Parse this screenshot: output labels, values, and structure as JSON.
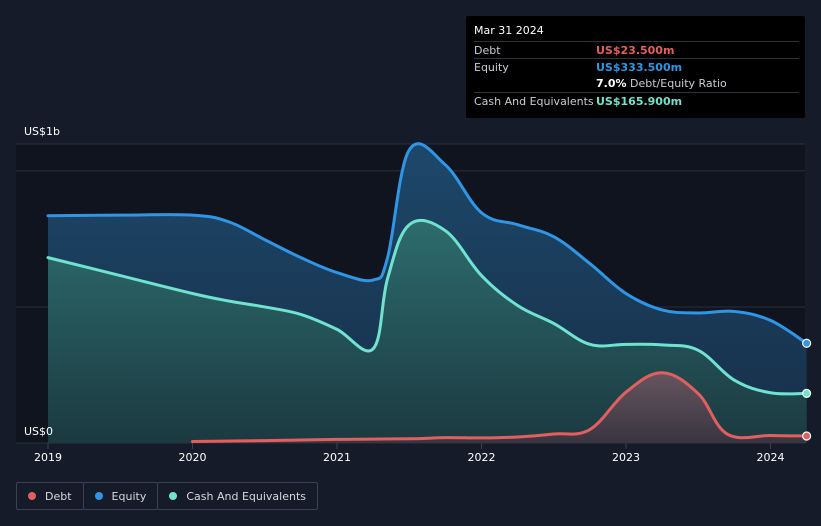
{
  "colors": {
    "debt": "#e35f5f",
    "equity": "#2f96e6",
    "cash": "#6fe3cf",
    "background": "#151b29",
    "plot_background": "#0f141f",
    "grid": "#2a303b"
  },
  "tooltip": {
    "date": "Mar 31 2024",
    "rows": {
      "debt": {
        "label": "Debt",
        "value": "US$23.500m"
      },
      "equity": {
        "label": "Equity",
        "value": "US$333.500m"
      },
      "ratio": {
        "value": "7.0%",
        "label": "Debt/Equity Ratio"
      },
      "cash": {
        "label": "Cash And Equivalents",
        "value": "US$165.900m"
      }
    }
  },
  "legend": {
    "debt": "Debt",
    "equity": "Equity",
    "cash": "Cash And Equivalents"
  },
  "chart_data": {
    "type": "area",
    "xlim": [
      2019.0,
      2024.25
    ],
    "ylim": [
      0,
      1000
    ],
    "y_axis_labels": {
      "top": "US$1b",
      "bottom": "US$0"
    },
    "x_ticks": [
      {
        "value": 2019,
        "label": "2019"
      },
      {
        "value": 2020,
        "label": "2020"
      },
      {
        "value": 2021,
        "label": "2021"
      },
      {
        "value": 2022,
        "label": "2022"
      },
      {
        "value": 2023,
        "label": "2023"
      },
      {
        "value": 2024,
        "label": "2024"
      }
    ],
    "grid": true,
    "legend_placement": "bottom-left",
    "series": [
      {
        "key": "equity",
        "name": "Equity",
        "x": [
          2019.0,
          2019.5,
          2020.0,
          2020.25,
          2020.5,
          2020.75,
          2021.0,
          2021.25,
          2021.35,
          2021.5,
          2021.75,
          2022.0,
          2022.25,
          2022.5,
          2022.75,
          2023.0,
          2023.25,
          2023.5,
          2023.75,
          2024.0,
          2024.25
        ],
        "y": [
          760,
          762,
          762,
          740,
          680,
          620,
          570,
          545,
          620,
          980,
          930,
          770,
          730,
          690,
          600,
          500,
          445,
          435,
          440,
          410,
          333.5
        ]
      },
      {
        "key": "cash",
        "name": "Cash And Equivalents",
        "x": [
          2019.0,
          2019.5,
          2020.0,
          2020.25,
          2020.5,
          2020.75,
          2021.0,
          2021.25,
          2021.35,
          2021.5,
          2021.75,
          2022.0,
          2022.25,
          2022.5,
          2022.75,
          2023.0,
          2023.25,
          2023.5,
          2023.75,
          2024.0,
          2024.25
        ],
        "y": [
          620,
          560,
          500,
          475,
          455,
          430,
          380,
          315,
          550,
          730,
          710,
          560,
          460,
          400,
          330,
          330,
          328,
          310,
          210,
          168,
          165.9
        ]
      },
      {
        "key": "debt",
        "name": "Debt",
        "x": [
          2020.0,
          2020.5,
          2021.0,
          2021.5,
          2021.75,
          2022.0,
          2022.25,
          2022.5,
          2022.75,
          2023.0,
          2023.25,
          2023.5,
          2023.7,
          2024.0,
          2024.25
        ],
        "y": [
          5,
          8,
          12,
          14,
          18,
          17,
          20,
          30,
          45,
          170,
          235,
          165,
          30,
          25,
          23.5
        ]
      }
    ]
  }
}
